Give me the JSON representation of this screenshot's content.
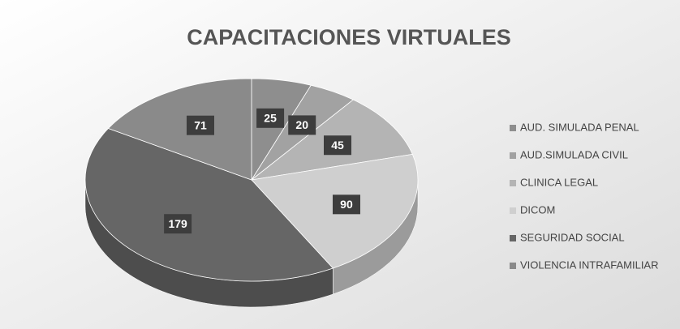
{
  "chart_data": {
    "type": "pie3d",
    "title": "CAPACITACIONES VIRTUALES",
    "categories": [
      "AUD. SIMULADA PENAL",
      "AUD.SIMULADA CIVIL",
      "CLINICA LEGAL",
      "DICOM",
      "SEGURIDAD SOCIAL",
      "VIOLENCIA INTRAFAMILIAR"
    ],
    "values": [
      25,
      20,
      45,
      90,
      179,
      71
    ],
    "colors": [
      "#8e8e8e",
      "#a2a2a2",
      "#b4b4b4",
      "#cfcfcf",
      "#666666",
      "#8a8a8a"
    ],
    "legend": "right"
  }
}
